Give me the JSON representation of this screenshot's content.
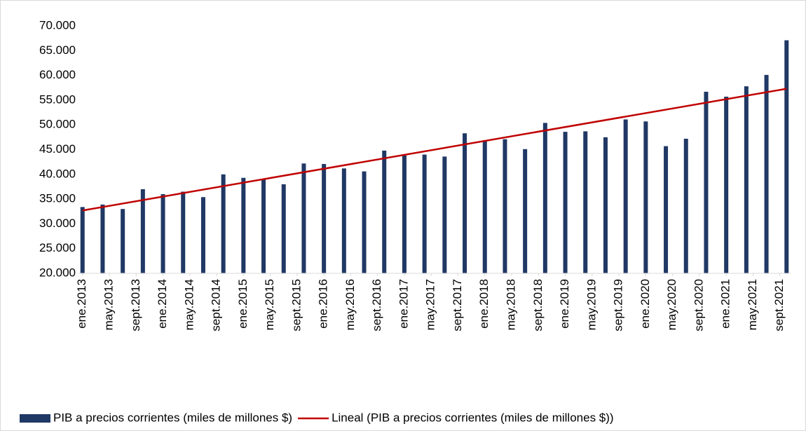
{
  "chart_data": {
    "type": "bar",
    "x": [
      0,
      3,
      6,
      9,
      12,
      15,
      18,
      21,
      24,
      27,
      30,
      33,
      36,
      39,
      42,
      45,
      48,
      51,
      54,
      57,
      60,
      63,
      66,
      69,
      72,
      75,
      78,
      81,
      84,
      87,
      90,
      93,
      96,
      99,
      102,
      105
    ],
    "series": [
      {
        "name": "PIB a precios corrientes (miles de millones $)",
        "color": "#203864",
        "values": [
          33400,
          33900,
          33000,
          37000,
          36000,
          36500,
          35400,
          40000,
          39300,
          39000,
          38000,
          42200,
          42100,
          41200,
          40600,
          44800,
          43800,
          44000,
          43600,
          48300,
          46900,
          47100,
          45100,
          50400,
          48600,
          48700,
          47500,
          51100,
          50700,
          45700,
          47200,
          56700,
          55700,
          57800,
          60100,
          67100
        ]
      },
      {
        "name": "Lineal (PIB a precios corrientes (miles de millones $))",
        "color": "#c00000",
        "type": "line",
        "x": [
          0,
          105
        ],
        "values": [
          32700,
          57300
        ]
      }
    ],
    "xlim": [
      -0.6,
      105.6
    ],
    "xticks": [
      {
        "value": 0,
        "label": "ene.2013"
      },
      {
        "value": 4,
        "label": "may.2013"
      },
      {
        "value": 8,
        "label": "sept.2013"
      },
      {
        "value": 12,
        "label": "ene.2014"
      },
      {
        "value": 16,
        "label": "may.2014"
      },
      {
        "value": 20,
        "label": "sept.2014"
      },
      {
        "value": 24,
        "label": "ene.2015"
      },
      {
        "value": 28,
        "label": "may.2015"
      },
      {
        "value": 32,
        "label": "sept.2015"
      },
      {
        "value": 36,
        "label": "ene.2016"
      },
      {
        "value": 40,
        "label": "may.2016"
      },
      {
        "value": 44,
        "label": "sept.2016"
      },
      {
        "value": 48,
        "label": "ene.2017"
      },
      {
        "value": 52,
        "label": "may.2017"
      },
      {
        "value": 56,
        "label": "sept.2017"
      },
      {
        "value": 60,
        "label": "ene.2018"
      },
      {
        "value": 64,
        "label": "may.2018"
      },
      {
        "value": 68,
        "label": "sept.2018"
      },
      {
        "value": 72,
        "label": "ene.2019"
      },
      {
        "value": 76,
        "label": "may.2019"
      },
      {
        "value": 80,
        "label": "sept.2019"
      },
      {
        "value": 84,
        "label": "ene.2020"
      },
      {
        "value": 88,
        "label": "may.2020"
      },
      {
        "value": 92,
        "label": "sept.2020"
      },
      {
        "value": 96,
        "label": "ene.2021"
      },
      {
        "value": 100,
        "label": "may.2021"
      },
      {
        "value": 104,
        "label": "sept.2021"
      }
    ],
    "ylim": [
      20000,
      70000
    ],
    "yticks": [
      {
        "value": 20000,
        "label": "20.000"
      },
      {
        "value": 25000,
        "label": "25.000"
      },
      {
        "value": 30000,
        "label": "30.000"
      },
      {
        "value": 35000,
        "label": "35.000"
      },
      {
        "value": 40000,
        "label": "40.000"
      },
      {
        "value": 45000,
        "label": "45.000"
      },
      {
        "value": 50000,
        "label": "50.000"
      },
      {
        "value": 55000,
        "label": "55.000"
      },
      {
        "value": 60000,
        "label": "60.000"
      },
      {
        "value": 65000,
        "label": "65.000"
      },
      {
        "value": 70000,
        "label": "70.000"
      }
    ],
    "legend": "bottom"
  }
}
